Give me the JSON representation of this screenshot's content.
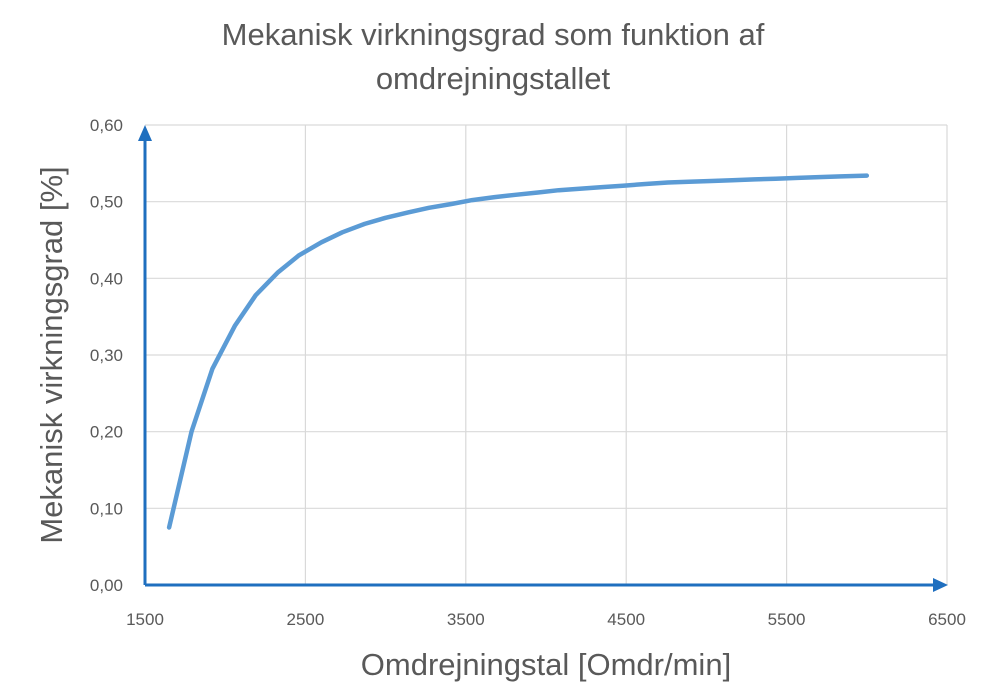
{
  "chart_data": {
    "type": "line",
    "title_line1": "Mekanisk virkningsgrad som funktion af",
    "title_line2": "omdrejningstallet",
    "xlabel": "Omdrejningstal [Omdr/min]",
    "ylabel": "Mekanisk virkningsgrad [%]",
    "xlim": [
      1500,
      6500
    ],
    "ylim": [
      0.0,
      0.6
    ],
    "x_ticks": [
      1500,
      2500,
      3500,
      4500,
      5500,
      6500
    ],
    "y_ticks": [
      0.0,
      0.1,
      0.2,
      0.3,
      0.4,
      0.5,
      0.6
    ],
    "y_tick_labels": [
      "0,00",
      "0,10",
      "0,20",
      "0,30",
      "0,40",
      "0,50",
      "0,60"
    ],
    "x_tick_labels": [
      "1500",
      "2500",
      "3500",
      "4500",
      "5500",
      "6500"
    ],
    "grid": true,
    "series": [
      {
        "color": "#5b9bd5",
        "x": [
          1650,
          1790,
          1920,
          2060,
          2190,
          2330,
          2460,
          2600,
          2730,
          2870,
          3000,
          3140,
          3270,
          3410,
          3540,
          3680,
          3810,
          3950,
          4080,
          4220,
          4350,
          4490,
          4620,
          4760,
          4890,
          5030,
          5160,
          5300,
          5430,
          5570,
          5700,
          5840,
          6000
        ],
        "y": [
          0.075,
          0.2,
          0.282,
          0.338,
          0.378,
          0.408,
          0.43,
          0.447,
          0.46,
          0.471,
          0.479,
          0.486,
          0.492,
          0.497,
          0.502,
          0.506,
          0.509,
          0.512,
          0.515,
          0.517,
          0.519,
          0.521,
          0.523,
          0.525,
          0.526,
          0.527,
          0.528,
          0.529,
          0.53,
          0.531,
          0.532,
          0.533,
          0.534
        ]
      }
    ],
    "axis_color": "#1f6fbf"
  }
}
